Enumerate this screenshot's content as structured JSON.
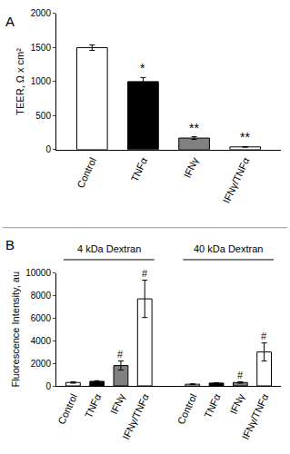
{
  "chart_data": [
    {
      "type": "bar",
      "panel": "A",
      "ylabel": "TEER, Ω x cm²",
      "categories": [
        "Control",
        "TNFα",
        "IFNγ",
        "IFNγ/TNFα"
      ],
      "values": [
        1500,
        1000,
        170,
        40
      ],
      "errors": [
        40,
        60,
        20,
        5
      ],
      "significance": [
        null,
        "*",
        "**",
        "**"
      ],
      "colors": [
        "#ffffff",
        "#000000",
        "#808080",
        "#ffffff"
      ],
      "ylim": [
        0,
        2000
      ],
      "yticks": [
        0,
        500,
        1000,
        1500,
        2000
      ]
    },
    {
      "type": "bar",
      "panel": "B",
      "ylabel": "Fluorescence Intensity, au",
      "categories": [
        "Control",
        "TNFα",
        "IFNγ",
        "IFNγ/TNFα"
      ],
      "groups": [
        {
          "title": "4 kDa Dextran",
          "values": [
            300,
            400,
            1800,
            7700
          ],
          "errors": [
            60,
            60,
            400,
            1650
          ],
          "significance": [
            null,
            null,
            "#",
            "#"
          ]
        },
        {
          "title": "40 kDa Dextran",
          "values": [
            150,
            250,
            300,
            3000
          ],
          "errors": [
            30,
            30,
            60,
            800
          ],
          "significance": [
            null,
            null,
            "#",
            "#"
          ]
        }
      ],
      "colors": [
        "#ffffff",
        "#000000",
        "#808080",
        "#ffffff"
      ],
      "ylim": [
        0,
        10000
      ],
      "yticks": [
        0,
        2000,
        4000,
        6000,
        8000,
        10000
      ]
    }
  ]
}
